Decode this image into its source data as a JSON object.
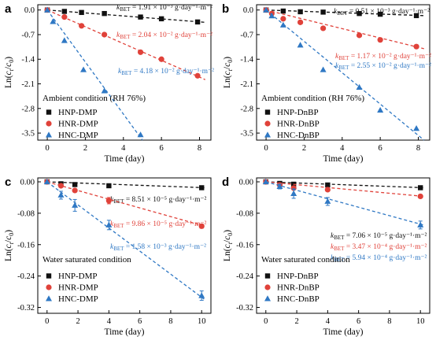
{
  "colors": {
    "HNP": "#111111",
    "HNR": "#e0423a",
    "HNC": "#2f78c4"
  },
  "chart_data": [
    {
      "panel": "a",
      "type": "scatter",
      "xlabel": "Time (day)",
      "ylabel": "Ln(ct/c0)",
      "xlim": [
        -0.5,
        8.6
      ],
      "ylim": [
        -3.7,
        0.15
      ],
      "xticks": [
        0,
        2,
        4,
        6,
        8
      ],
      "yticks": [
        0.0,
        -0.7,
        -1.4,
        -2.1,
        -2.8,
        -3.5
      ],
      "condition": "Ambient condition (RH 76%)",
      "series": [
        {
          "name": "HNP-DMP",
          "marker": "square",
          "color": "HNP",
          "x": [
            0,
            0.9,
            1.8,
            3,
            4.9,
            6,
            7.9
          ],
          "y": [
            0,
            -0.04,
            -0.07,
            -0.1,
            -0.2,
            -0.25,
            -0.34
          ],
          "fit": [
            [
              0,
              0
            ],
            [
              8.3,
              -0.35
            ]
          ],
          "k_label": "k_BET = 1.91 × 10⁻³ g·day⁻¹·m⁻²"
        },
        {
          "name": "HNR-DMP",
          "marker": "circle",
          "color": "HNR",
          "x": [
            0,
            0.9,
            1.8,
            3,
            4.9,
            6,
            7.9
          ],
          "y": [
            0,
            -0.2,
            -0.45,
            -0.7,
            -1.2,
            -1.4,
            -1.87
          ],
          "fit": [
            [
              0,
              0
            ],
            [
              8.3,
              -1.98
            ]
          ],
          "k_label": "k_BET = 2.04 × 10⁻² g·day⁻¹·m⁻²"
        },
        {
          "name": "HNC-DMP",
          "marker": "triangle",
          "color": "HNC",
          "x": [
            0,
            0.3,
            0.9,
            1.9,
            3,
            4.9
          ],
          "y": [
            0,
            -0.33,
            -0.87,
            -1.7,
            -2.3,
            -3.55
          ],
          "fit": [
            [
              0,
              0
            ],
            [
              5.0,
              -3.7
            ]
          ],
          "k_label": "k_BET = 4.18 × 10⁻² g·day⁻¹·m⁻²"
        }
      ]
    },
    {
      "panel": "b",
      "type": "scatter",
      "xlabel": "Time (day)",
      "ylabel": "Ln(ct/c0)",
      "xlim": [
        -0.5,
        8.6
      ],
      "ylim": [
        -3.7,
        0.15
      ],
      "xticks": [
        0,
        2,
        4,
        6,
        8
      ],
      "yticks": [
        0.0,
        -0.7,
        -1.4,
        -2.1,
        -2.8,
        -3.5
      ],
      "condition": "Ambient condition (RH 76%)",
      "series": [
        {
          "name": "HNP-DnBP",
          "marker": "square",
          "color": "HNP",
          "x": [
            0,
            0.9,
            1.8,
            3,
            4.9,
            6,
            7.9
          ],
          "y": [
            0,
            -0.03,
            -0.05,
            -0.06,
            -0.1,
            -0.12,
            -0.16
          ],
          "fit": [
            [
              0,
              0
            ],
            [
              8.3,
              -0.16
            ]
          ],
          "k_label": "k_BET = 0.51 × 10⁻³ g·day⁻¹·m⁻²"
        },
        {
          "name": "HNR-DnBP",
          "marker": "circle",
          "color": "HNR",
          "x": [
            0,
            0.3,
            0.9,
            1.8,
            3,
            4.9,
            6,
            7.9
          ],
          "y": [
            0,
            -0.1,
            -0.25,
            -0.35,
            -0.52,
            -0.72,
            -0.85,
            -1.04
          ],
          "fit": [
            [
              0,
              0
            ],
            [
              8.3,
              -1.1
            ]
          ],
          "k_label": "k_BET = 1.17 × 10⁻² g·day⁻¹·m⁻²"
        },
        {
          "name": "HNC-DnBP",
          "marker": "triangle",
          "color": "HNC",
          "x": [
            0,
            0.3,
            0.9,
            1.8,
            3,
            4.9,
            6,
            7.9
          ],
          "y": [
            0,
            -0.17,
            -0.43,
            -1.0,
            -1.7,
            -2.2,
            -2.85,
            -3.37
          ],
          "fit": [
            [
              0,
              0
            ],
            [
              8.3,
              -3.7
            ]
          ],
          "k_label": "k_BET = 2.55 × 10⁻² g·day⁻¹·m⁻²"
        }
      ]
    },
    {
      "panel": "c",
      "type": "scatter",
      "xlabel": "Time (day)",
      "ylabel": "Ln(ct/c0)",
      "xlim": [
        -0.6,
        10.6
      ],
      "ylim": [
        -0.335,
        0.01
      ],
      "xticks": [
        0,
        2,
        4,
        6,
        8,
        10
      ],
      "yticks": [
        0.0,
        -0.08,
        -0.16,
        -0.24,
        -0.32
      ],
      "condition": "Water saturated condition",
      "series": [
        {
          "name": "HNP-DMP",
          "marker": "square",
          "color": "HNP",
          "x": [
            0,
            0.9,
            1.8,
            4,
            10
          ],
          "y": [
            0,
            -0.005,
            -0.007,
            -0.01,
            -0.015
          ],
          "fit": [
            [
              0,
              0
            ],
            [
              10.2,
              -0.015
            ]
          ],
          "k_label": "k_BET = 8.51 × 10⁻⁵ g·day⁻¹·m⁻²"
        },
        {
          "name": "HNR-DMP",
          "marker": "circle",
          "color": "HNR",
          "x": [
            0,
            0.9,
            1.8,
            4,
            10
          ],
          "y": [
            0,
            -0.01,
            -0.022,
            -0.048,
            -0.113
          ],
          "fit": [
            [
              0,
              0
            ],
            [
              10.2,
              -0.113
            ]
          ],
          "k_label": "k_BET = 9.86 × 10⁻⁵ g·day⁻¹·m⁻²",
          "err": [
            0,
            0.004,
            0.004,
            0.008,
            0.005
          ]
        },
        {
          "name": "HNC-DMP",
          "marker": "triangle",
          "color": "HNC",
          "x": [
            0,
            0.9,
            1.8,
            4,
            10
          ],
          "y": [
            0,
            -0.034,
            -0.06,
            -0.11,
            -0.29
          ],
          "fit": [
            [
              0,
              0
            ],
            [
              10.2,
              -0.3
            ]
          ],
          "k_label": "k_BET = 1.58 × 10⁻³ g·day⁻¹·m⁻²",
          "err": [
            0,
            0.01,
            0.015,
            0.012,
            0.012
          ]
        }
      ]
    },
    {
      "panel": "d",
      "type": "scatter",
      "xlabel": "Time (day)",
      "ylabel": "Ln(ct/c0)",
      "xlim": [
        -0.6,
        10.6
      ],
      "ylim": [
        -0.335,
        0.01
      ],
      "xticks": [
        0,
        2,
        4,
        6,
        8,
        10
      ],
      "yticks": [
        0.0,
        -0.08,
        -0.16,
        -0.24,
        -0.32
      ],
      "condition": "Water saturated condition",
      "series": [
        {
          "name": "HNP-DnBP",
          "marker": "square",
          "color": "HNP",
          "x": [
            0,
            0.9,
            1.8,
            4,
            10
          ],
          "y": [
            0,
            -0.004,
            -0.006,
            -0.008,
            -0.015
          ],
          "fit": [
            [
              0,
              0
            ],
            [
              10.2,
              -0.015
            ]
          ],
          "k_label": "k_BET = 7.06 × 10⁻⁵ g·day⁻¹·m⁻²"
        },
        {
          "name": "HNR-DnBP",
          "marker": "circle",
          "color": "HNR",
          "x": [
            0,
            0.9,
            1.8,
            4,
            10
          ],
          "y": [
            0,
            -0.008,
            -0.016,
            -0.02,
            -0.037
          ],
          "fit": [
            [
              0,
              0
            ],
            [
              10.2,
              -0.037
            ]
          ],
          "k_label": "k_BET = 3.47 × 10⁻⁴ g·day⁻¹·m⁻²",
          "err": [
            0,
            0.004,
            0.004,
            0.004,
            0.004
          ]
        },
        {
          "name": "HNC-DnBP",
          "marker": "triangle",
          "color": "HNC",
          "x": [
            0,
            0.9,
            1.8,
            4,
            10
          ],
          "y": [
            0,
            -0.012,
            -0.03,
            -0.05,
            -0.11
          ],
          "fit": [
            [
              0,
              0
            ],
            [
              10.2,
              -0.11
            ]
          ],
          "k_label": "k_BET = 5.94 × 10⁻⁴ g·day⁻¹·m⁻²",
          "err": [
            0,
            0.006,
            0.012,
            0.01,
            0.01
          ]
        }
      ]
    }
  ]
}
